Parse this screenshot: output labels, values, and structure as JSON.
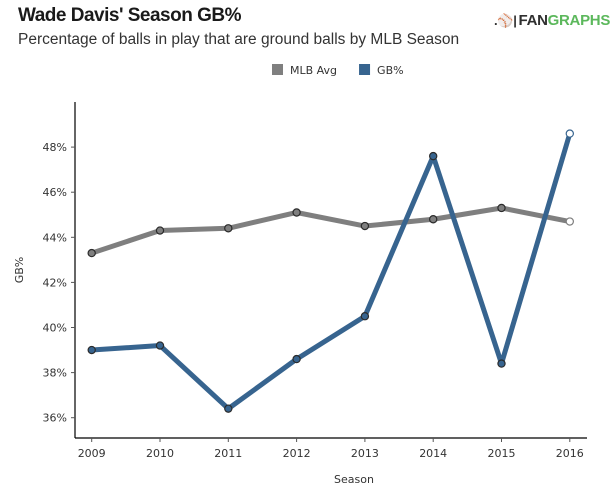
{
  "header": {
    "title": "Wade Davis' Season GB%",
    "subtitle": "Percentage of balls in play that are ground balls by MLB Season",
    "logo_mark": ".⚾|",
    "logo_fan": "FAN",
    "logo_graphs": "GRAPHS"
  },
  "chart_data": {
    "type": "line",
    "title": "Wade Davis' Season GB%",
    "subtitle": "Percentage of balls in play that are ground balls by MLB Season",
    "xlabel": "Season",
    "ylabel": "GB%",
    "x": [
      2009,
      2010,
      2011,
      2012,
      2013,
      2014,
      2015,
      2016
    ],
    "x_tick_labels": [
      "2009",
      "2010",
      "2011",
      "2012",
      "2013",
      "2014",
      "2015",
      "2016"
    ],
    "y_ticks": [
      36,
      38,
      40,
      42,
      44,
      46,
      48
    ],
    "y_tick_labels": [
      "36%",
      "38%",
      "40%",
      "42%",
      "44%",
      "46%",
      "48%"
    ],
    "ylim": [
      35.1,
      50.0
    ],
    "grid": false,
    "legend_position": "top-center",
    "series": [
      {
        "name": "MLB Avg",
        "color": "#7f7f7f",
        "values": [
          43.3,
          44.3,
          44.4,
          45.1,
          44.5,
          44.8,
          45.3,
          44.7
        ]
      },
      {
        "name": "GB%",
        "color": "#37648f",
        "values": [
          39.0,
          39.2,
          36.4,
          38.6,
          40.5,
          47.6,
          38.4,
          48.6
        ]
      }
    ]
  }
}
